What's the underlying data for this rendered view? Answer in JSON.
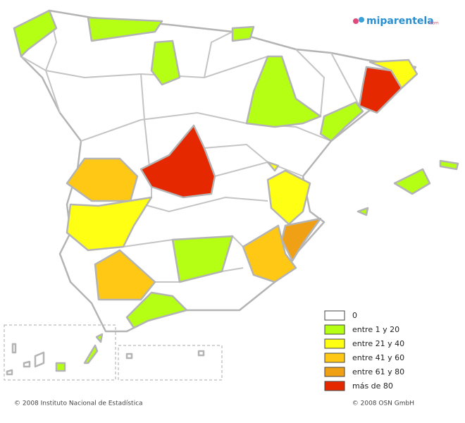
{
  "brand": {
    "name": "miparentela",
    "suffix": ".com"
  },
  "legend": {
    "items": [
      {
        "label": "0",
        "color": "#ffffff"
      },
      {
        "label": "entre 1 y 20",
        "color": "#b5ff14"
      },
      {
        "label": "entre 21 y 40",
        "color": "#ffff14"
      },
      {
        "label": "entre 41 y 60",
        "color": "#ffc814"
      },
      {
        "label": "entre 61 y 80",
        "color": "#f0a014"
      },
      {
        "label": "más de 80",
        "color": "#e52800"
      }
    ]
  },
  "footer": {
    "left": "© 2008 Instituto Nacional de Estadística",
    "right": "© 2008 OSN GmbH"
  }
}
